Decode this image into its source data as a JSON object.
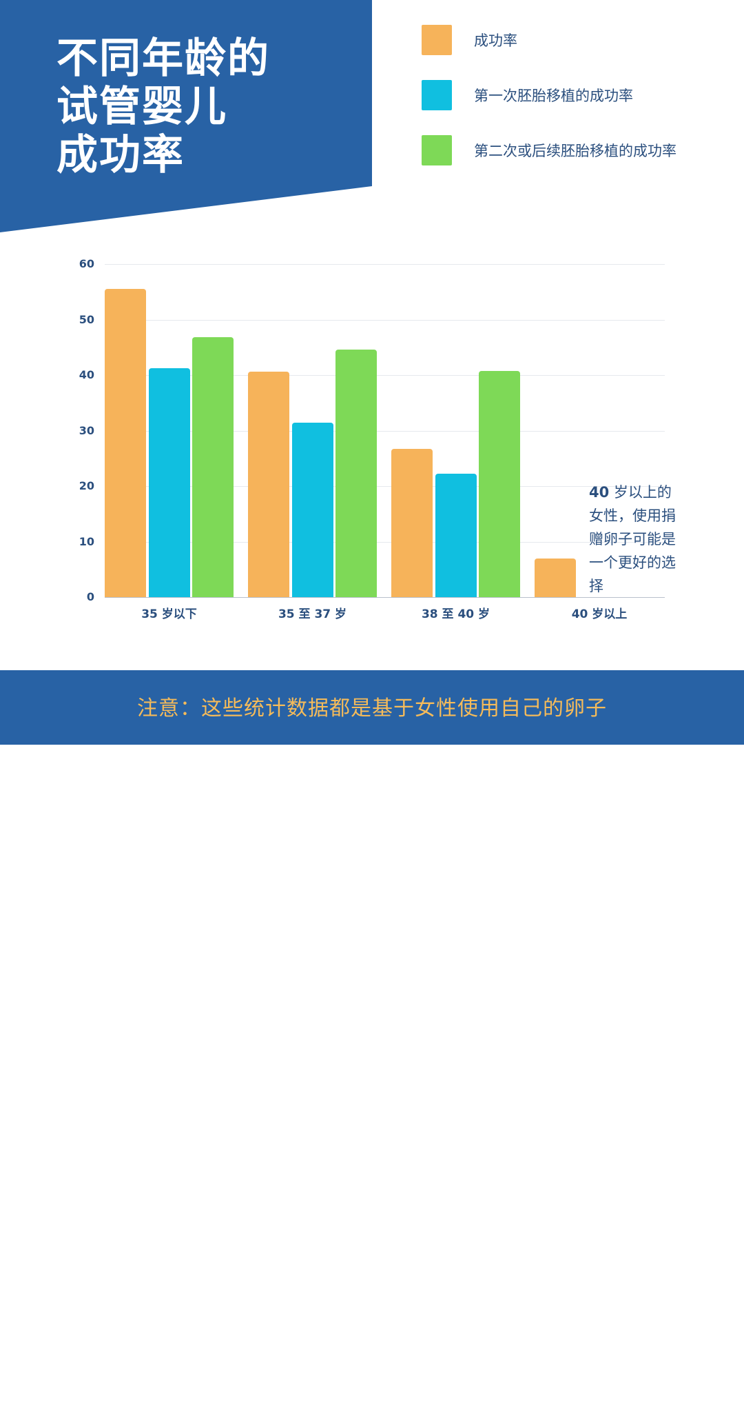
{
  "header": {
    "title_lines": [
      "不同年龄的",
      "试管婴儿",
      "成功率"
    ],
    "background_color": "#2862a5"
  },
  "legend": {
    "items": [
      {
        "label": "成功率",
        "color": "#f6b35a"
      },
      {
        "label": "第一次胚胎移植的成功率",
        "color": "#10bfe0"
      },
      {
        "label": "第二次或后续胚胎移植的成功率",
        "color": "#7ed957"
      }
    ]
  },
  "annotation": {
    "bold_prefix": "40",
    "text": " 岁以上的女性，使用捐赠卵子可能是一个更好的选择"
  },
  "footer": {
    "note": "注意：这些统计数据都是基于女性使用自己的卵子"
  },
  "chart_data": {
    "type": "bar",
    "title": "不同年龄的试管婴儿成功率",
    "xlabel": "",
    "ylabel": "",
    "ylim": [
      0,
      60
    ],
    "yticks": [
      0,
      10,
      20,
      30,
      40,
      50,
      60
    ],
    "grid": true,
    "legend_position": "top-right",
    "categories": [
      "35 岁以下",
      "35 至 37 岁",
      "38 至 40 岁",
      "40 岁以上"
    ],
    "series": [
      {
        "name": "成功率",
        "color": "#f6b35a",
        "values": [
          55.5,
          40.6,
          26.7,
          7.0
        ]
      },
      {
        "name": "第一次胚胎移植的成功率",
        "color": "#10bfe0",
        "values": [
          41.2,
          31.4,
          22.2,
          null
        ]
      },
      {
        "name": "第二次或后续胚胎移植的成功率",
        "color": "#7ed957",
        "values": [
          46.8,
          44.6,
          40.7,
          null
        ]
      }
    ],
    "annotations": [
      "40 岁以上的女性，使用捐赠卵子可能是一个更好的选择"
    ]
  }
}
